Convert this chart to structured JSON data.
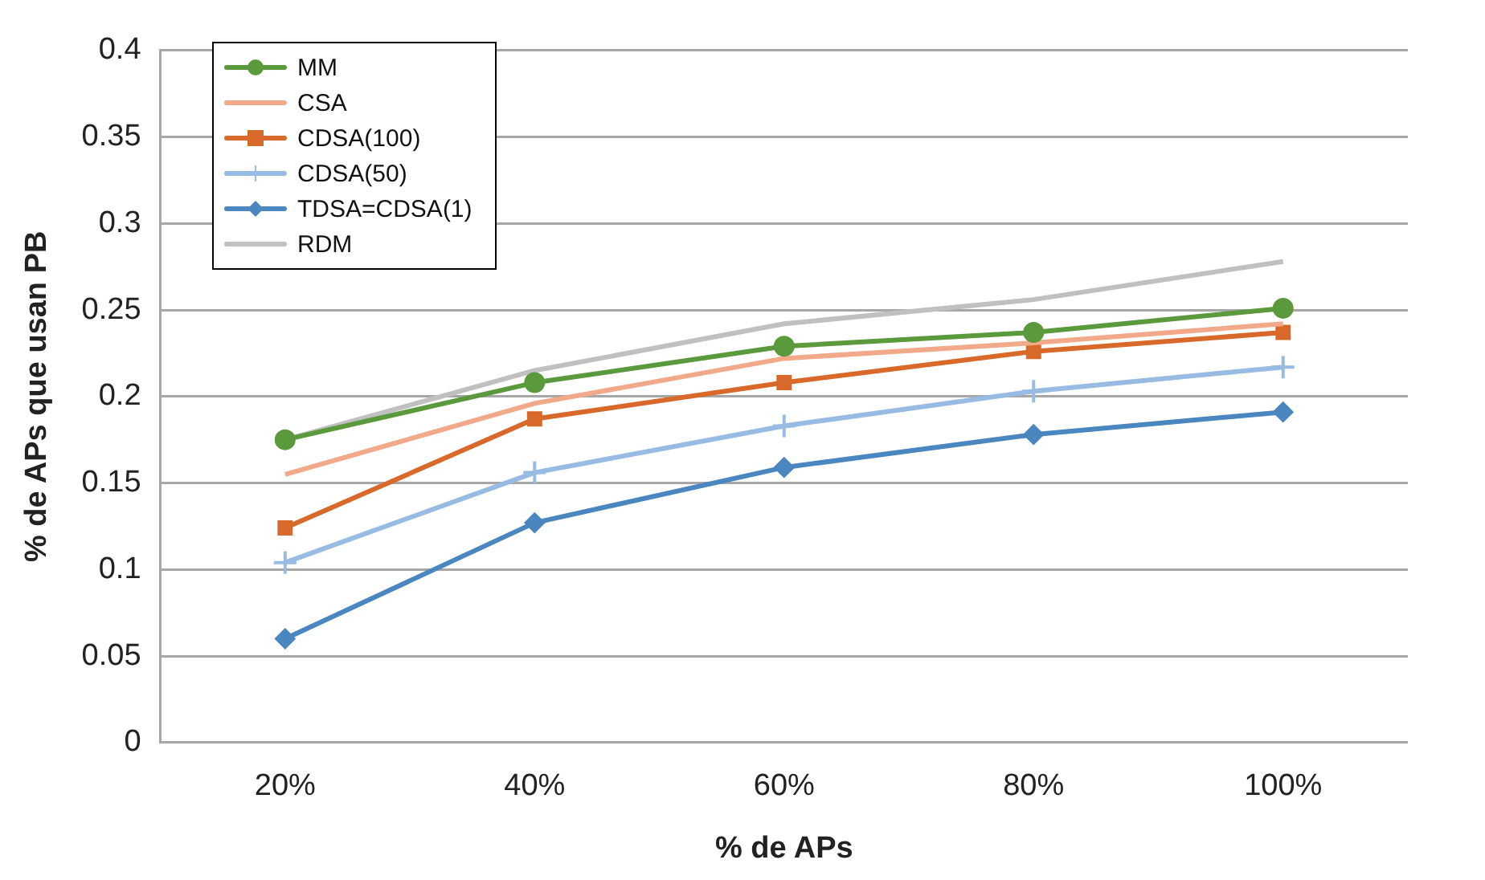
{
  "chart_data": {
    "type": "line",
    "xlabel": "% de APs",
    "ylabel": "% de APs que usan PB",
    "categories": [
      "20%",
      "40%",
      "60%",
      "80%",
      "100%"
    ],
    "ylim": [
      0,
      0.4
    ],
    "yticks": [
      0,
      0.05,
      0.1,
      0.15,
      0.2,
      0.25,
      0.3,
      0.35,
      0.4
    ],
    "grid": "y",
    "legend": "top left",
    "line_style": "solid",
    "series": [
      {
        "name": "MM",
        "color": "#5b9a3c",
        "marker": "circle",
        "values": [
          0.175,
          0.208,
          0.229,
          0.237,
          0.251
        ]
      },
      {
        "name": "CSA",
        "color": "#f2a98a",
        "marker": "none",
        "values": [
          0.155,
          0.196,
          0.222,
          0.231,
          0.242
        ]
      },
      {
        "name": "CDSA(100)",
        "color": "#d8692b",
        "marker": "square",
        "values": [
          0.124,
          0.187,
          0.208,
          0.226,
          0.237
        ]
      },
      {
        "name": "CDSA(50)",
        "color": "#98bbe3",
        "marker": "cross",
        "values": [
          0.104,
          0.156,
          0.183,
          0.203,
          0.217
        ]
      },
      {
        "name": "TDSA=CDSA(1)",
        "color": "#4a86bf",
        "marker": "diamond",
        "values": [
          0.06,
          0.127,
          0.159,
          0.178,
          0.191
        ]
      },
      {
        "name": "RDM",
        "color": "#c0c0c0",
        "marker": "none",
        "values": [
          0.175,
          0.215,
          0.242,
          0.256,
          0.278
        ]
      }
    ]
  }
}
